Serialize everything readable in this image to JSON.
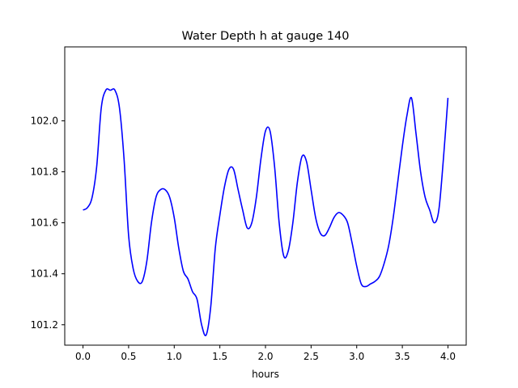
{
  "chart_data": {
    "type": "line",
    "title": "Water Depth h at gauge 140",
    "xlabel": "hours",
    "ylabel": "",
    "xlim": [
      -0.2,
      4.2
    ],
    "ylim": [
      101.12,
      102.29
    ],
    "grid": false,
    "legend": "none",
    "xticks": [
      0.0,
      0.5,
      1.0,
      1.5,
      2.0,
      2.5,
      3.0,
      3.5,
      4.0
    ],
    "xtick_labels": [
      "0.0",
      "0.5",
      "1.0",
      "1.5",
      "2.0",
      "2.5",
      "3.0",
      "3.5",
      "4.0"
    ],
    "yticks": [
      101.2,
      101.4,
      101.6,
      101.8,
      102.0
    ],
    "ytick_labels": [
      "101.2",
      "101.4",
      "101.6",
      "101.8",
      "102.0"
    ],
    "series": [
      {
        "color": "#0000ff",
        "x": [
          0.0,
          0.05,
          0.1,
          0.15,
          0.2,
          0.25,
          0.3,
          0.35,
          0.4,
          0.45,
          0.5,
          0.55,
          0.6,
          0.65,
          0.7,
          0.75,
          0.8,
          0.85,
          0.9,
          0.95,
          1.0,
          1.05,
          1.1,
          1.15,
          1.2,
          1.25,
          1.3,
          1.35,
          1.4,
          1.45,
          1.5,
          1.55,
          1.6,
          1.65,
          1.7,
          1.75,
          1.8,
          1.85,
          1.9,
          1.95,
          2.0,
          2.05,
          2.1,
          2.15,
          2.2,
          2.25,
          2.3,
          2.35,
          2.4,
          2.45,
          2.5,
          2.55,
          2.6,
          2.65,
          2.7,
          2.75,
          2.8,
          2.85,
          2.9,
          2.95,
          3.0,
          3.05,
          3.1,
          3.15,
          3.2,
          3.25,
          3.3,
          3.35,
          3.4,
          3.45,
          3.5,
          3.55,
          3.6,
          3.65,
          3.7,
          3.75,
          3.8,
          3.85,
          3.9,
          3.95,
          4.0
        ],
        "y": [
          101.65,
          101.66,
          101.7,
          101.82,
          102.05,
          102.12,
          102.12,
          102.12,
          102.05,
          101.85,
          101.55,
          101.42,
          101.37,
          101.37,
          101.45,
          101.6,
          101.7,
          101.73,
          101.73,
          101.7,
          101.62,
          101.5,
          101.41,
          101.38,
          101.33,
          101.3,
          101.2,
          101.16,
          101.27,
          101.5,
          101.63,
          101.74,
          101.81,
          101.81,
          101.73,
          101.65,
          101.58,
          101.6,
          101.7,
          101.85,
          101.96,
          101.96,
          101.82,
          101.6,
          101.47,
          101.49,
          101.6,
          101.76,
          101.86,
          101.84,
          101.73,
          101.62,
          101.56,
          101.55,
          101.58,
          101.62,
          101.64,
          101.63,
          101.6,
          101.52,
          101.43,
          101.36,
          101.35,
          101.36,
          101.37,
          101.39,
          101.44,
          101.51,
          101.62,
          101.76,
          101.9,
          102.02,
          102.09,
          101.95,
          101.8,
          101.7,
          101.65,
          101.6,
          101.65,
          101.85,
          102.09
        ]
      }
    ]
  }
}
